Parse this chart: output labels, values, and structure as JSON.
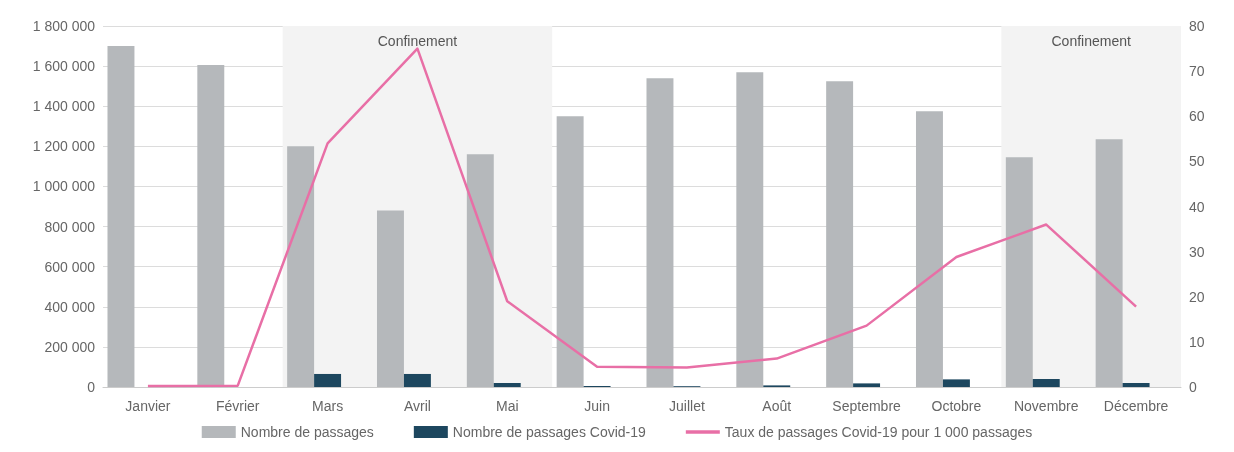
{
  "chart_data": {
    "type": "bar",
    "categories": [
      "Janvier",
      "Février",
      "Mars",
      "Avril",
      "Mai",
      "Juin",
      "Juillet",
      "Août",
      "Septembre",
      "Octobre",
      "Novembre",
      "Décembre"
    ],
    "series": [
      {
        "name": "Nombre de passages",
        "color": "#b5b8bb",
        "values": [
          1700000,
          1605000,
          1200000,
          880000,
          1160000,
          1350000,
          1540000,
          1570000,
          1525000,
          1375000,
          1145000,
          1235000
        ]
      },
      {
        "name": "Nombre de passages Covid-19",
        "color": "#1d475f",
        "values": [
          0,
          0,
          65000,
          65000,
          20000,
          5000,
          4000,
          8000,
          18000,
          38000,
          40000,
          20000
        ]
      },
      {
        "name": "Taux de passages Covid-19 pour 1 000 passages",
        "type": "line",
        "axis": "y2",
        "color": "#e86fa6",
        "values": [
          0.2,
          0.3,
          54,
          75,
          19,
          4.5,
          4.3,
          6.3,
          13.6,
          28.8,
          36,
          17.8
        ]
      }
    ],
    "ylim": [
      0,
      1800000
    ],
    "yticks": [
      {
        "value": 0,
        "label": "0"
      },
      {
        "value": 200000,
        "label": "200 000"
      },
      {
        "value": 400000,
        "label": "400 000"
      },
      {
        "value": 600000,
        "label": "600 000"
      },
      {
        "value": 800000,
        "label": "800 000"
      },
      {
        "value": 1000000,
        "label": "1 000 000"
      },
      {
        "value": 1200000,
        "label": "1 200 000"
      },
      {
        "value": 1400000,
        "label": "1 400 000"
      },
      {
        "value": 1600000,
        "label": "1 600 000"
      },
      {
        "value": 1800000,
        "label": "1 800 000"
      }
    ],
    "y2lim": [
      0,
      80
    ],
    "y2ticks": [
      0,
      10,
      20,
      30,
      40,
      50,
      60,
      70,
      80
    ],
    "bands": [
      {
        "axis": "x",
        "from": "Mars",
        "to": "Mai",
        "label": "Confinement",
        "color": "#f3f3f3"
      },
      {
        "axis": "x",
        "from": "Novembre",
        "to": "Décembre",
        "label": "Confinement",
        "color": "#f3f3f3"
      }
    ],
    "grid": "y",
    "legend": "bottom",
    "marker": "none",
    "line_style": "solid"
  }
}
